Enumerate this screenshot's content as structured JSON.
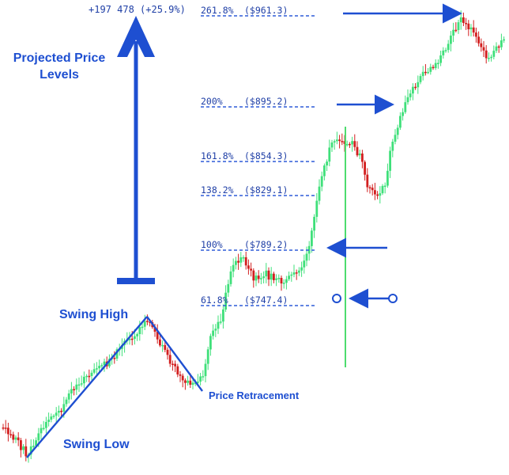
{
  "chart_data": {
    "type": "candlestick",
    "title": "",
    "fib_levels": [
      {
        "pct": "261.8%",
        "price": "($961.3)",
        "value": 961.3
      },
      {
        "pct": "200%",
        "price": "($895.2)",
        "value": 895.2
      },
      {
        "pct": "161.8%",
        "price": "($854.3)",
        "value": 854.3
      },
      {
        "pct": "138.2%",
        "price": "($829.1)",
        "value": 829.1
      },
      {
        "pct": "100%",
        "price": "($789.2)",
        "value": 789.2
      },
      {
        "pct": "61.8%",
        "price": "($747.4)",
        "value": 747.4
      }
    ],
    "projection_change": "+197 478 (+25.9%)",
    "annotations": {
      "projected_line1": "Projected Price",
      "projected_line2": "Levels",
      "swing_high": "Swing High",
      "swing_low": "Swing Low",
      "price_retracement": "Price Retracement"
    },
    "colors": {
      "bull": "#3fe07a",
      "bear": "#d21f1f",
      "accent": "#1e4fd1",
      "fib": "#2f5bd8",
      "vline": "#4ddc6e"
    }
  }
}
